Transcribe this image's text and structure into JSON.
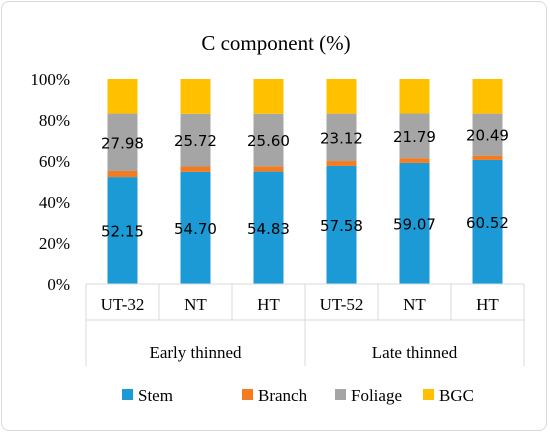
{
  "chart_data": {
    "type": "bar",
    "stacked": true,
    "percent_stacked": true,
    "title": "C component (%)",
    "categories": [
      "UT-32",
      "NT",
      "HT",
      "UT-52",
      "NT",
      "HT"
    ],
    "groups": [
      {
        "label": "Early thinned",
        "categories": [
          "UT-32",
          "NT",
          "HT"
        ]
      },
      {
        "label": "Late thinned",
        "categories": [
          "UT-52",
          "NT",
          "HT"
        ]
      }
    ],
    "series": [
      {
        "name": "Stem",
        "color": "#1c9ad6",
        "values": [
          52.15,
          54.7,
          54.83,
          57.58,
          59.07,
          60.52
        ],
        "labels": [
          "52.15",
          "54.70",
          "54.83",
          "57.58",
          "59.07",
          "60.52"
        ]
      },
      {
        "name": "Branch",
        "color": "#f47b20",
        "values": [
          3.0,
          2.6,
          2.6,
          2.4,
          2.3,
          2.1
        ]
      },
      {
        "name": "Foliage",
        "color": "#a5a5a5",
        "values": [
          27.98,
          25.72,
          25.6,
          23.12,
          21.79,
          20.49
        ],
        "labels": [
          "27.98",
          "25.72",
          "25.60",
          "23.12",
          "21.79",
          "20.49"
        ]
      },
      {
        "name": "BGC",
        "color": "#ffc000",
        "values": [
          16.87,
          16.98,
          16.97,
          16.9,
          16.84,
          16.89
        ]
      }
    ],
    "ylim": [
      0,
      100
    ],
    "yticks": [
      "0%",
      "20%",
      "40%",
      "60%",
      "80%",
      "100%"
    ],
    "xlabel": "",
    "ylabel": "",
    "grid": false,
    "legend_position": "bottom"
  }
}
